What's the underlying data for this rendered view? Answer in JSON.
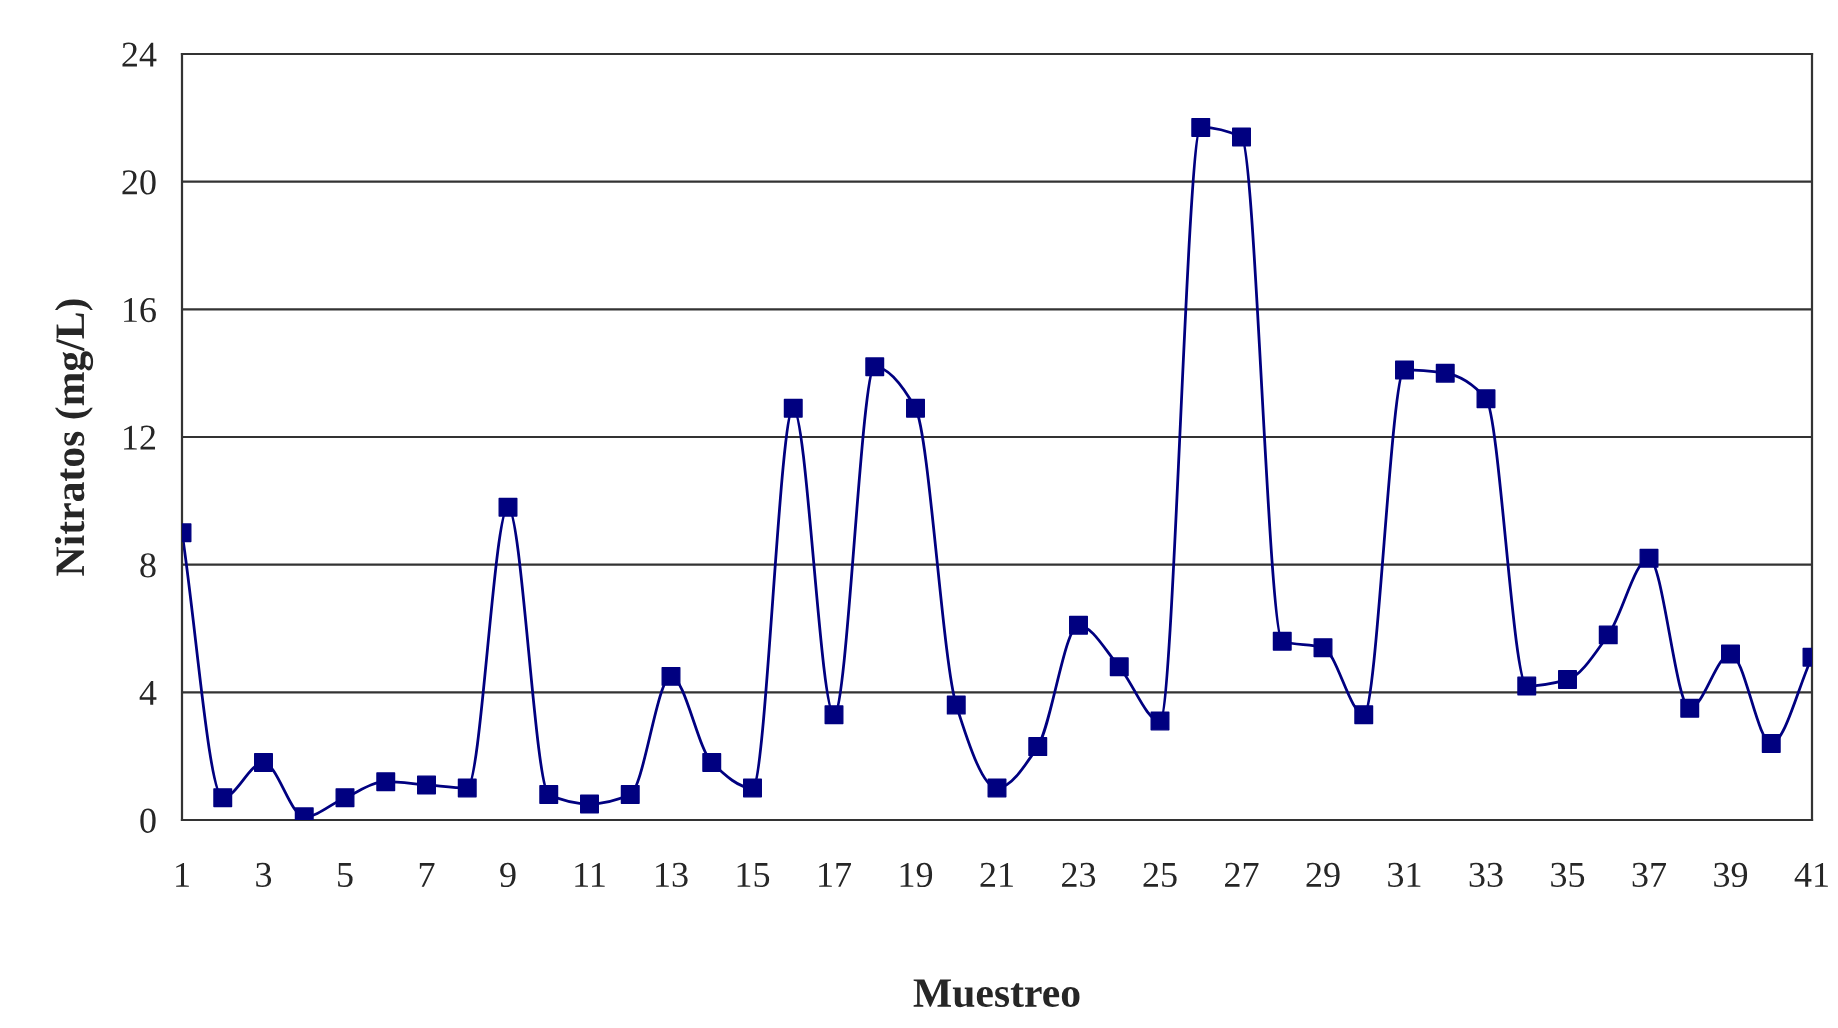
{
  "chart_data": {
    "type": "line",
    "xlabel": "Muestreo",
    "ylabel": "Nitratos (mg/L)",
    "categories": [
      "1",
      null,
      "3",
      null,
      "5",
      null,
      "7",
      null,
      "9",
      null,
      "11",
      null,
      "13",
      null,
      "15",
      null,
      "17",
      null,
      "19",
      null,
      "21",
      null,
      "23",
      null,
      "25",
      null,
      "27",
      null,
      "29",
      null,
      "31",
      null,
      "33",
      null,
      "35",
      null,
      "37",
      null,
      "39",
      null,
      "41"
    ],
    "series": [
      {
        "color": "#000080",
        "values": [
          9.0,
          0.7,
          1.8,
          0.1,
          0.7,
          1.2,
          1.1,
          1.0,
          9.8,
          0.8,
          0.5,
          0.8,
          4.5,
          1.8,
          1.0,
          12.9,
          3.3,
          14.2,
          12.9,
          3.6,
          1.0,
          2.3,
          6.1,
          4.8,
          3.1,
          21.7,
          21.4,
          5.6,
          5.4,
          3.3,
          14.1,
          14.0,
          13.2,
          4.2,
          4.4,
          5.8,
          8.2,
          3.5,
          5.2,
          2.4,
          5.1
        ]
      }
    ],
    "ylim": [
      0,
      24
    ],
    "yticks": [
      0,
      4,
      8,
      12,
      16,
      20,
      24
    ],
    "grid": "y",
    "marker": "square",
    "line_style": "solid"
  }
}
